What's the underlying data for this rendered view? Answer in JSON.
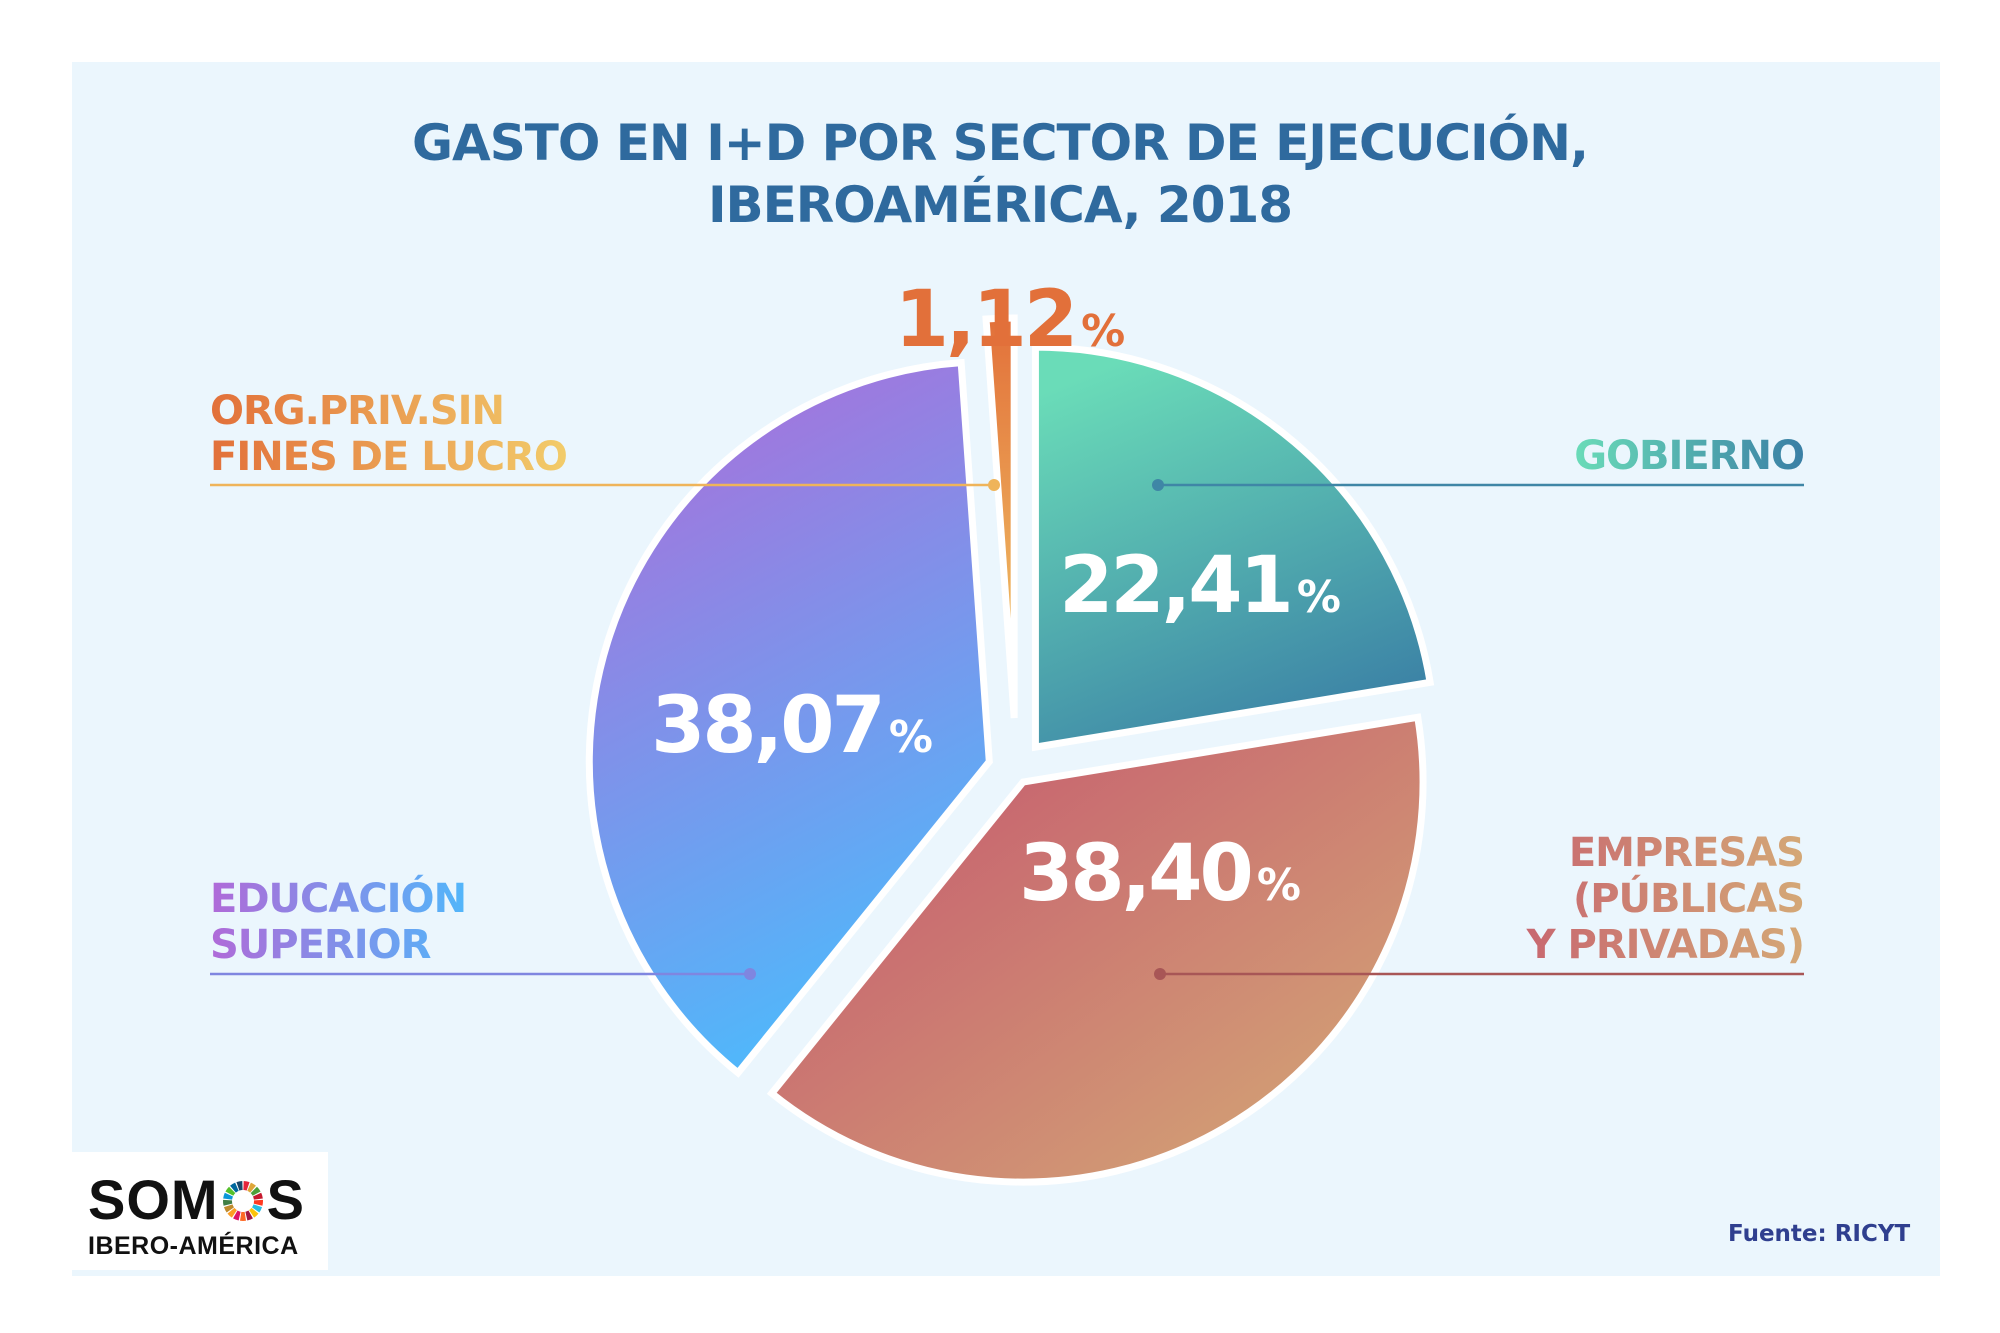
{
  "title": {
    "line1": "GASTO EN I+D POR SECTOR DE EJECUCIÓN,",
    "line2": "IBEROAMÉRICA, 2018"
  },
  "chart_data": {
    "type": "pie",
    "title": "GASTO EN I+D POR SECTOR DE EJECUCIÓN, IBEROAMÉRICA, 2018",
    "unit": "%",
    "exploded": true,
    "start": "12 o'clock, clockwise",
    "slices": [
      {
        "name": "Gobierno",
        "label_lines": [
          "GOBIERNO"
        ],
        "value": 22.41,
        "value_text": "22,41",
        "colors": [
          "#6adcb8",
          "#3a7fa5"
        ],
        "label_side": "right-top"
      },
      {
        "name": "Empresas (públicas y privadas)",
        "label_lines": [
          "EMPRESAS",
          "(PÚBLICAS",
          "Y PRIVADAS)"
        ],
        "value": 38.4,
        "value_text": "38,40",
        "colors": [
          "#c86870",
          "#d4a876"
        ],
        "label_side": "right-bottom"
      },
      {
        "name": "Educación superior",
        "label_lines": [
          "EDUCACIÓN",
          "SUPERIOR"
        ],
        "value": 38.07,
        "value_text": "38,07",
        "colors": [
          "#b06ad8",
          "#52b6fa"
        ],
        "label_side": "left-bottom"
      },
      {
        "name": "Org. priv. sin fines de lucro",
        "label_lines": [
          "ORG.PRIV.SIN",
          "FINES DE LUCRO"
        ],
        "value": 1.12,
        "value_text": "1,12",
        "colors": [
          "#e2703a",
          "#f2cc6a"
        ],
        "label_side": "left-top"
      }
    ]
  },
  "percent_sign": "%",
  "logo": {
    "line1_a": "SOM",
    "line1_b": "S",
    "line2": "IBERO-AMÉRICA"
  },
  "source": "Fuente: RICYT"
}
